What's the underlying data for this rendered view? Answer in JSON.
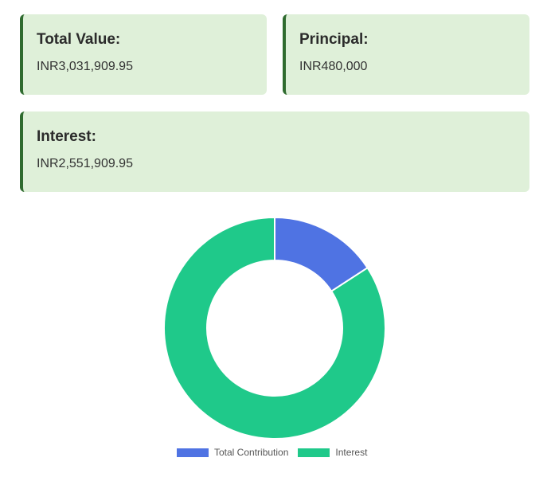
{
  "cards": {
    "total": {
      "label": "Total Value:",
      "value": "INR3,031,909.95"
    },
    "principal": {
      "label": "Principal:",
      "value": "INR480,000"
    },
    "interest": {
      "label": "Interest:",
      "value": "INR2,551,909.95"
    }
  },
  "colors": {
    "card_bg": "#dff0d9",
    "card_border": "#2f6b2f",
    "total_contribution": "#4f73e3",
    "interest": "#1fc98a"
  },
  "chart_data": {
    "type": "pie",
    "variant": "doughnut",
    "legend_position": "bottom",
    "categories": [
      "Total Contribution",
      "Interest"
    ],
    "values": [
      480000,
      2551909.95
    ],
    "colors": [
      "#4f73e3",
      "#1fc98a"
    ]
  }
}
